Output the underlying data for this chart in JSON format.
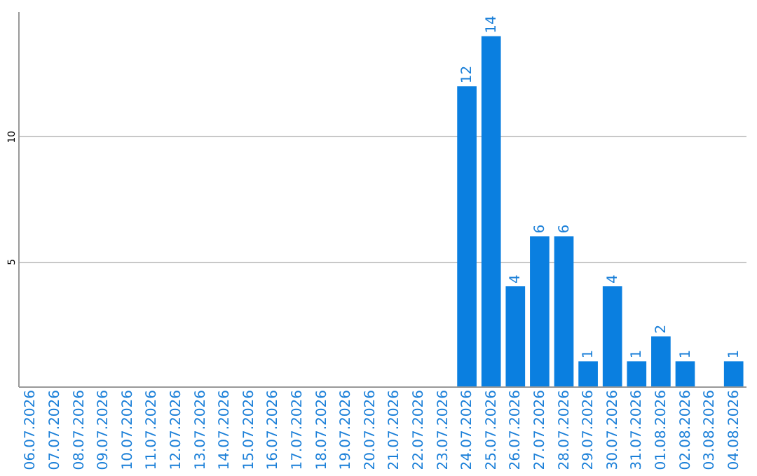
{
  "chart_data": {
    "type": "bar",
    "categories": [
      "06.07.2026",
      "07.07.2026",
      "08.07.2026",
      "09.07.2026",
      "10.07.2026",
      "11.07.2026",
      "12.07.2026",
      "13.07.2026",
      "14.07.2026",
      "15.07.2026",
      "16.07.2026",
      "17.07.2026",
      "18.07.2026",
      "19.07.2026",
      "20.07.2026",
      "21.07.2026",
      "22.07.2026",
      "23.07.2026",
      "24.07.2026",
      "25.07.2026",
      "26.07.2026",
      "27.07.2026",
      "28.07.2026",
      "29.07.2026",
      "30.07.2026",
      "31.07.2026",
      "01.08.2026",
      "02.08.2026",
      "03.08.2026",
      "04.08.2026"
    ],
    "values": [
      0,
      0,
      0,
      0,
      0,
      0,
      0,
      0,
      0,
      0,
      0,
      0,
      0,
      0,
      0,
      0,
      0,
      0,
      12,
      14,
      4,
      6,
      6,
      1,
      4,
      1,
      2,
      1,
      0,
      1
    ],
    "value_labels": [
      null,
      null,
      null,
      null,
      null,
      null,
      null,
      null,
      null,
      null,
      null,
      null,
      null,
      null,
      null,
      null,
      null,
      null,
      "12",
      "14",
      "4",
      "6",
      "6",
      "1",
      "4",
      "1",
      "2",
      "1",
      null,
      "1"
    ],
    "color": "#0a7fe0",
    "ylim": [
      0,
      15
    ],
    "yticks": [
      5,
      10
    ],
    "grid": "y"
  }
}
